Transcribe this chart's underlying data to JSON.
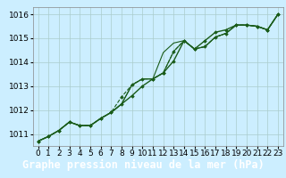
{
  "title": "Graphe pression niveau de la mer (hPa)",
  "background_color": "#cceeff",
  "plot_bg_color": "#cceeff",
  "grid_color": "#aacccc",
  "line_color": "#1a5c1a",
  "xlabel_bg": "#2d6e2d",
  "xlim": [
    -0.5,
    23.5
  ],
  "ylim": [
    1010.5,
    1016.3
  ],
  "xticks": [
    0,
    1,
    2,
    3,
    4,
    5,
    6,
    7,
    8,
    9,
    10,
    11,
    12,
    13,
    14,
    15,
    16,
    17,
    18,
    19,
    20,
    21,
    22,
    23
  ],
  "yticks": [
    1011,
    1012,
    1013,
    1014,
    1015,
    1016
  ],
  "series": [
    [
      1010.7,
      1010.9,
      1011.15,
      1011.5,
      1011.35,
      1011.35,
      1011.65,
      1011.9,
      1012.25,
      1012.6,
      1013.0,
      1013.3,
      1013.55,
      1014.05,
      1014.9,
      1014.55,
      1014.9,
      1015.25,
      1015.35,
      1015.55,
      1015.55,
      1015.5,
      1015.35,
      1016.0
    ],
    [
      1010.7,
      1010.9,
      1011.15,
      1011.5,
      1011.35,
      1011.35,
      1011.65,
      1011.9,
      1012.55,
      1013.05,
      1013.3,
      1013.3,
      1013.55,
      1014.45,
      1014.9,
      1014.55,
      1014.65,
      1015.05,
      1015.2,
      1015.55,
      1015.55,
      1015.5,
      1015.35,
      1016.0
    ],
    [
      1010.7,
      1010.9,
      1011.15,
      1011.5,
      1011.35,
      1011.35,
      1011.65,
      1011.9,
      1012.25,
      1013.05,
      1013.3,
      1013.3,
      1014.4,
      1014.8,
      1014.9,
      1014.55,
      1014.65,
      1015.05,
      1015.2,
      1015.55,
      1015.55,
      1015.5,
      1015.35,
      1016.0
    ],
    [
      1010.7,
      1010.9,
      1011.15,
      1011.5,
      1011.35,
      1011.35,
      1011.65,
      1011.9,
      1012.25,
      1013.05,
      1013.3,
      1013.3,
      1013.55,
      1014.45,
      1014.9,
      1014.55,
      1014.65,
      1015.05,
      1015.2,
      1015.55,
      1015.55,
      1015.5,
      1015.35,
      1016.0
    ]
  ],
  "tick_fontsize": 6.5,
  "title_fontsize": 8.5
}
